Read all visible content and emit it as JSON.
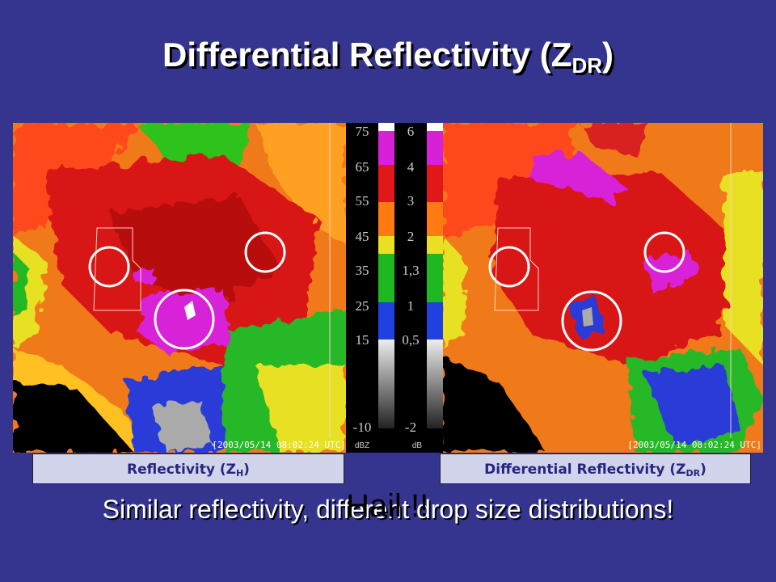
{
  "title": {
    "main": "Differential Reflectivity (Z",
    "sub": "DR",
    "end": ")"
  },
  "colorbar": {
    "left_labels": [
      "75",
      "65",
      "55",
      "45",
      "35",
      "25",
      "15",
      "-10"
    ],
    "left_unit": "dBZ",
    "right_labels": [
      "6",
      "4",
      "3",
      "2",
      "1,3",
      "1",
      "0,5",
      "-2"
    ],
    "right_unit": "dB"
  },
  "images": {
    "left_timestamp": "[2003/05/14 08:02:24 UTC]",
    "right_timestamp": "[2003/05/14 08:02:24 UTC]"
  },
  "captions": {
    "left": {
      "main": "Reflectivity (Z",
      "sub": "H",
      "end": ")"
    },
    "right": {
      "main": "Differential Reflectivity (Z",
      "sub": "DR",
      "end": ")"
    }
  },
  "footer": {
    "text": "Similar reflectivity, different drop size distributions!",
    "overlay": "Hail !!"
  }
}
